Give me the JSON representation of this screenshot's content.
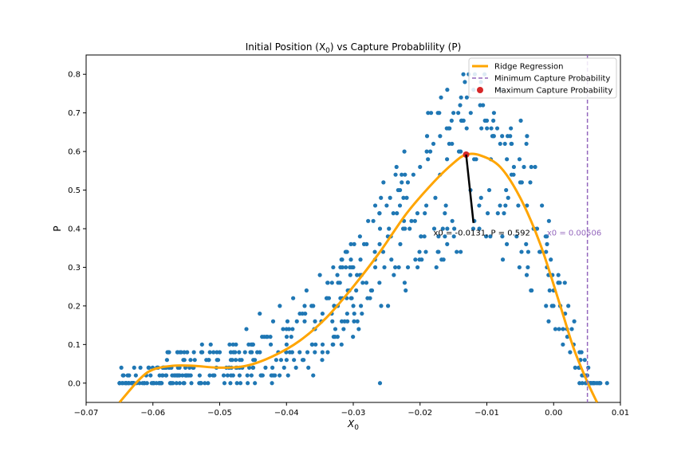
{
  "chart_data": {
    "type": "scatter",
    "title": "Initial Position ($X_0$) vs Capture Probablility (P)",
    "xlabel": "X",
    "xlabel_sub": "0",
    "ylabel": "P",
    "xlim": [
      -0.07,
      0.01
    ],
    "ylim": [
      -0.05,
      0.85
    ],
    "x_ticks": [
      -0.07,
      -0.06,
      -0.05,
      -0.04,
      -0.03,
      -0.02,
      -0.01,
      0.0,
      0.01
    ],
    "x_tick_labels": [
      "−0.07",
      "−0.06",
      "−0.05",
      "−0.04",
      "−0.03",
      "−0.02",
      "−0.01",
      "0.00",
      "0.01"
    ],
    "y_ticks": [
      0.0,
      0.1,
      0.2,
      0.3,
      0.4,
      0.5,
      0.6,
      0.7,
      0.8
    ],
    "y_tick_labels": [
      "0.0",
      "0.1",
      "0.2",
      "0.3",
      "0.4",
      "0.5",
      "0.6",
      "0.7",
      "0.8"
    ],
    "grid": false,
    "legend_position": "top-right",
    "colors": {
      "scatter": "#1f77b4",
      "regression": "#ffa500",
      "min_line": "#9467bd",
      "max_point": "#d62728",
      "annotation_min": "#9467bd"
    },
    "series": [
      {
        "name": "Ridge Regression",
        "kind": "line",
        "curve": "polynomial fit over data"
      },
      {
        "name": "Minimum Capture Probability",
        "kind": "vline",
        "x": 0.00506
      },
      {
        "name": "Maximum Capture Probability",
        "kind": "point",
        "x": -0.0131,
        "y": 0.592
      }
    ],
    "scatter_description_points": [
      [
        -0.065,
        0.0
      ],
      [
        -0.064,
        0.0
      ],
      [
        -0.063,
        0.0
      ],
      [
        -0.062,
        0.0
      ],
      [
        -0.061,
        0.02
      ],
      [
        -0.06,
        0.0
      ],
      [
        -0.059,
        0.02
      ],
      [
        -0.058,
        0.04
      ],
      [
        -0.057,
        0.0
      ],
      [
        -0.056,
        0.02
      ],
      [
        -0.055,
        0.02
      ],
      [
        -0.054,
        0.04
      ],
      [
        -0.053,
        0.02
      ],
      [
        -0.052,
        0.06
      ],
      [
        -0.051,
        0.02
      ],
      [
        -0.05,
        0.08
      ],
      [
        -0.049,
        0.04
      ],
      [
        -0.048,
        0.1
      ],
      [
        -0.047,
        0.06
      ],
      [
        -0.046,
        0.14
      ],
      [
        -0.045,
        0.1
      ],
      [
        -0.044,
        0.18
      ],
      [
        -0.043,
        0.12
      ],
      [
        -0.042,
        0.16
      ],
      [
        -0.041,
        0.2
      ],
      [
        -0.04,
        0.14
      ],
      [
        -0.039,
        0.22
      ],
      [
        -0.038,
        0.18
      ],
      [
        -0.037,
        0.24
      ],
      [
        -0.036,
        0.2
      ],
      [
        -0.035,
        0.28
      ],
      [
        -0.034,
        0.22
      ],
      [
        -0.033,
        0.3
      ],
      [
        -0.032,
        0.26
      ],
      [
        -0.031,
        0.34
      ],
      [
        -0.03,
        0.3
      ],
      [
        -0.029,
        0.38
      ],
      [
        -0.028,
        0.36
      ],
      [
        -0.027,
        0.42
      ],
      [
        -0.026,
        0.4
      ],
      [
        -0.025,
        0.46
      ],
      [
        -0.024,
        0.44
      ],
      [
        -0.023,
        0.5
      ],
      [
        -0.022,
        0.48
      ],
      [
        -0.021,
        0.54
      ],
      [
        -0.02,
        0.56
      ],
      [
        -0.019,
        0.6
      ],
      [
        -0.018,
        0.62
      ],
      [
        -0.017,
        0.64
      ],
      [
        -0.016,
        0.66
      ],
      [
        -0.015,
        0.7
      ],
      [
        -0.014,
        0.72
      ],
      [
        -0.013,
        0.74
      ],
      [
        -0.012,
        0.76
      ],
      [
        -0.011,
        0.72
      ],
      [
        -0.01,
        0.68
      ],
      [
        -0.009,
        0.64
      ],
      [
        -0.008,
        0.62
      ],
      [
        -0.007,
        0.58
      ],
      [
        -0.006,
        0.54
      ],
      [
        -0.005,
        0.52
      ],
      [
        -0.004,
        0.46
      ],
      [
        -0.003,
        0.4
      ],
      [
        -0.002,
        0.34
      ],
      [
        -0.001,
        0.3
      ],
      [
        0.0,
        0.24
      ],
      [
        0.001,
        0.2
      ],
      [
        0.002,
        0.14
      ],
      [
        0.003,
        0.1
      ],
      [
        0.004,
        0.06
      ],
      [
        0.005,
        0.02
      ],
      [
        0.006,
        0.0
      ],
      [
        0.007,
        0.0
      ],
      [
        0.008,
        0.0
      ],
      [
        -0.026,
        0.0
      ],
      [
        -0.036,
        0.02
      ],
      [
        -0.042,
        0.02
      ]
    ],
    "regression_curve": [
      [
        -0.065,
        -0.05
      ],
      [
        -0.062,
        0.01
      ],
      [
        -0.06,
        0.035
      ],
      [
        -0.057,
        0.045
      ],
      [
        -0.054,
        0.045
      ],
      [
        -0.05,
        0.04
      ],
      [
        -0.046,
        0.045
      ],
      [
        -0.042,
        0.07
      ],
      [
        -0.038,
        0.11
      ],
      [
        -0.034,
        0.17
      ],
      [
        -0.03,
        0.25
      ],
      [
        -0.026,
        0.34
      ],
      [
        -0.022,
        0.44
      ],
      [
        -0.018,
        0.52
      ],
      [
        -0.015,
        0.57
      ],
      [
        -0.0131,
        0.592
      ],
      [
        -0.011,
        0.59
      ],
      [
        -0.008,
        0.56
      ],
      [
        -0.005,
        0.48
      ],
      [
        -0.002,
        0.36
      ],
      [
        0.001,
        0.2
      ],
      [
        0.003,
        0.09
      ],
      [
        0.005,
        0.005
      ],
      [
        0.0065,
        -0.05
      ]
    ],
    "annotations": [
      {
        "text": "x0 = -0.0131, P = 0.592",
        "x": -0.018,
        "y": 0.39,
        "arrow_to": [
          -0.0131,
          0.592
        ],
        "color": "#000000"
      },
      {
        "text": "x0 = 0.00506",
        "x": -0.001,
        "y": 0.39,
        "color": "#9467bd"
      }
    ]
  },
  "legend": {
    "items": [
      {
        "label": "Ridge Regression"
      },
      {
        "label": "Minimum Capture Probability"
      },
      {
        "label": "Maximum Capture Probability"
      }
    ]
  },
  "title": "Initial Position (X",
  "title_sub": "0",
  "title_tail": ") vs Capture Probablility (P)",
  "annotation_max_text": "x0 = -0.0131, P = 0.592",
  "annotation_min_text": "x0 = 0.00506"
}
